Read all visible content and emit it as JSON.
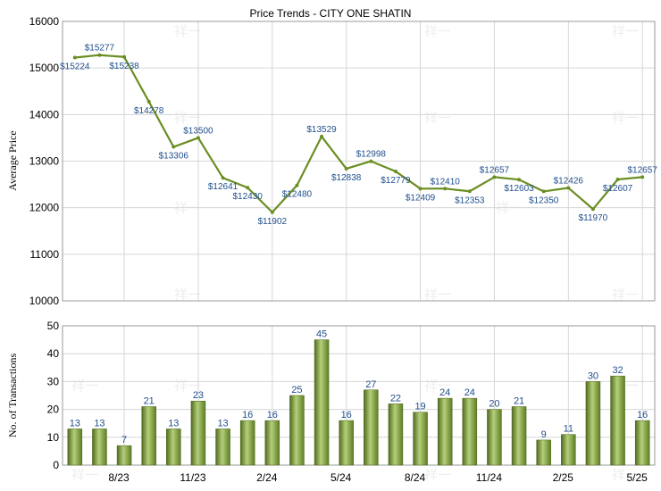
{
  "chart_data": [
    {
      "type": "line",
      "title": "Price Trends - CITY ONE SHATIN",
      "ylabel": "Average Price",
      "ylim": [
        10000,
        16000
      ],
      "yticks": [
        10000,
        11000,
        12000,
        13000,
        14000,
        15000,
        16000
      ],
      "grid": true,
      "series": [
        {
          "color": "#6b8e23",
          "values": [
            15224,
            15277,
            15238,
            14278,
            13306,
            13500,
            12641,
            12430,
            11902,
            12480,
            13529,
            12838,
            12998,
            12779,
            12409,
            12410,
            12353,
            12657,
            12603,
            12350,
            12426,
            11970,
            12607,
            12657
          ],
          "labels": [
            "$15224",
            "$15277",
            "$15238",
            "$14278",
            "$13306",
            "$13500",
            "$12641",
            "$12430",
            "$11902",
            "$12480",
            "$13529",
            "$12838",
            "$12998",
            "$12779",
            "$12409",
            "$12410",
            "$12353",
            "$12657",
            "$12603",
            "$12350",
            "$12426",
            "$11970",
            "$12607",
            "$12657"
          ]
        }
      ]
    },
    {
      "type": "bar",
      "ylabel": "No. of Transactions",
      "ylim": [
        0,
        50
      ],
      "yticks": [
        0,
        10,
        20,
        30,
        40,
        50
      ],
      "grid": true,
      "x_tick_labels": [
        {
          "index": 2,
          "label": "8/23"
        },
        {
          "index": 5,
          "label": "11/23"
        },
        {
          "index": 8,
          "label": "2/24"
        },
        {
          "index": 11,
          "label": "5/24"
        },
        {
          "index": 14,
          "label": "8/24"
        },
        {
          "index": 17,
          "label": "11/24"
        },
        {
          "index": 20,
          "label": "2/25"
        },
        {
          "index": 23,
          "label": "5/25"
        }
      ],
      "series": [
        {
          "color": "#7a9a3a",
          "values": [
            13,
            13,
            7,
            21,
            13,
            23,
            13,
            16,
            16,
            25,
            45,
            16,
            27,
            22,
            19,
            24,
            24,
            20,
            21,
            9,
            11,
            30,
            32,
            16
          ]
        }
      ]
    }
  ],
  "watermark": "祥一"
}
